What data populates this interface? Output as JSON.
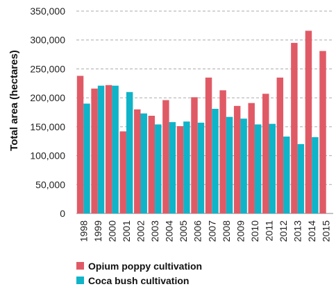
{
  "chart_data": {
    "type": "bar",
    "categories": [
      "1998",
      "1999",
      "2000",
      "2001",
      "2002",
      "2003",
      "2004",
      "2005",
      "2006",
      "2007",
      "2008",
      "2009",
      "2010",
      "2011",
      "2012",
      "2013",
      "2014",
      "2015"
    ],
    "series": [
      {
        "name": "Opium poppy cultivation",
        "color": "#e05a66",
        "values": [
          238000,
          216000,
          222000,
          142000,
          180000,
          169000,
          196000,
          151000,
          201000,
          235000,
          213000,
          186000,
          191000,
          207000,
          235000,
          295000,
          316000,
          281000
        ]
      },
      {
        "name": "Coca bush cultivation",
        "color": "#0fb4c8",
        "values": [
          190000,
          221000,
          221000,
          210000,
          173000,
          154000,
          158000,
          159000,
          157000,
          181000,
          167000,
          164000,
          154000,
          155000,
          133000,
          120000,
          132000,
          null
        ]
      }
    ],
    "ylabel": "Total area (hectares)",
    "ylim": [
      0,
      350000
    ],
    "yticks": [
      "0",
      "50,000",
      "100,000",
      "150,000",
      "200,000",
      "250,000",
      "300,000",
      "350,000"
    ],
    "grid": true,
    "legend_position": "bottom"
  }
}
